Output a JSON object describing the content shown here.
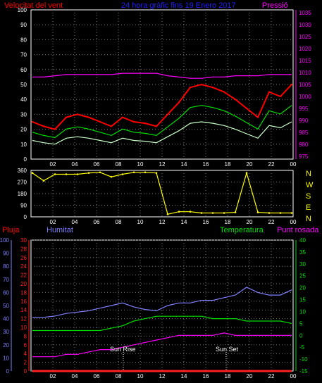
{
  "title": "24 hora gràfic fins 19 Enero 2017",
  "colors": {
    "background": "#000000",
    "frame": "#ffffff",
    "grid": "#7a7a7a",
    "wind_speed": "#ff0000",
    "wind_avg": "#00e000",
    "wind_min": "#c8ffc8",
    "pressure": "#ff00ff",
    "direction": "#ffff00",
    "humidity": "#8080ff",
    "rain": "#ff2020",
    "temperature": "#00e000",
    "dew_point": "#ff00ff",
    "left_axis_rain": "#8080ff",
    "title": "#2020ff"
  },
  "top_panel": {
    "left_label": "Velocitat del vent",
    "right_label": "Pressió",
    "left_ticks": [
      "0",
      "10",
      "20",
      "30",
      "40",
      "50",
      "60",
      "70",
      "80",
      "90",
      "100"
    ],
    "right_ticks": [
      "975",
      "980",
      "985",
      "990",
      "995",
      "1000",
      "1005",
      "1010",
      "1015",
      "1020",
      "1025",
      "1030",
      "1035"
    ]
  },
  "mid_panel": {
    "left_ticks": [
      "0",
      "90",
      "180",
      "270",
      "360"
    ],
    "compass": [
      "N",
      "W",
      "S",
      "E",
      "N"
    ]
  },
  "bottom_panel": {
    "label_rain": "Pluja",
    "label_humidity": "Humitat",
    "label_temperature": "Temperatura",
    "label_dewpoint": "Punt rosada",
    "rain_ticks": [
      "0",
      "10",
      "20",
      "30",
      "40",
      "50",
      "60",
      "70",
      "80",
      "90",
      "100"
    ],
    "humidity_ticks": [
      "0",
      "2",
      "4",
      "6",
      "8",
      "10",
      "12",
      "14",
      "16",
      "18",
      "20",
      "22",
      "24",
      "26",
      "28",
      "30"
    ],
    "temp_ticks": [
      "-15",
      "-10",
      "-5",
      "0",
      "5",
      "10",
      "15",
      "20",
      "25",
      "30",
      "35",
      "40"
    ],
    "sunrise": "Sun Rise",
    "sunset": "Sun Set"
  },
  "x_ticks": [
    "02",
    "04",
    "06",
    "08",
    "10",
    "12",
    "14",
    "16",
    "18",
    "20",
    "22",
    "00"
  ],
  "chart_data": [
    {
      "type": "line",
      "panel": "wind-pressure",
      "x": [
        "01",
        "02",
        "03",
        "04",
        "05",
        "06",
        "07",
        "08",
        "09",
        "10",
        "11",
        "12",
        "13",
        "14",
        "15",
        "16",
        "17",
        "18",
        "19",
        "20",
        "21",
        "22",
        "23",
        "00"
      ],
      "series": [
        {
          "name": "Velocitat del vent",
          "axis": "left",
          "ylim": [
            0,
            100
          ],
          "values": [
            25,
            22,
            20,
            28,
            30,
            28,
            25,
            22,
            28,
            25,
            24,
            22,
            30,
            38,
            48,
            50,
            48,
            45,
            40,
            34,
            28,
            45,
            42,
            50
          ]
        },
        {
          "name": "Pressió",
          "axis": "right",
          "ylim": [
            975,
            1035
          ],
          "values": [
            1008,
            1008,
            1008.5,
            1009,
            1009,
            1009,
            1009,
            1009,
            1009.5,
            1009.5,
            1009.5,
            1009.5,
            1008.5,
            1008,
            1007.5,
            1007.5,
            1008,
            1008,
            1008.5,
            1008.5,
            1008.5,
            1009,
            1009,
            1009
          ]
        }
      ]
    },
    {
      "type": "scatter",
      "panel": "wind-direction",
      "x": [
        "01",
        "02",
        "03",
        "04",
        "05",
        "06",
        "07",
        "08",
        "09",
        "10",
        "11",
        "12",
        "13",
        "14",
        "15",
        "16",
        "17",
        "18",
        "19",
        "20",
        "21",
        "22",
        "23",
        "00"
      ],
      "series": [
        {
          "name": "Direcció",
          "ylim": [
            0,
            360
          ],
          "values": [
            340,
            280,
            330,
            330,
            330,
            340,
            345,
            310,
            330,
            345,
            345,
            340,
            20,
            40,
            40,
            30,
            30,
            30,
            35,
            340,
            35,
            30,
            30,
            30
          ]
        }
      ]
    },
    {
      "type": "line",
      "panel": "temperature-humidity",
      "x": [
        "01",
        "02",
        "03",
        "04",
        "05",
        "06",
        "07",
        "08",
        "09",
        "10",
        "11",
        "12",
        "13",
        "14",
        "15",
        "16",
        "17",
        "18",
        "19",
        "20",
        "21",
        "22",
        "23",
        "00"
      ],
      "series": [
        {
          "name": "Humitat",
          "axis": "left",
          "ylim": [
            0,
            100
          ],
          "values": [
            41,
            41,
            42,
            44,
            45,
            46,
            48,
            50,
            52,
            49,
            47,
            46,
            50,
            52,
            52,
            54,
            54,
            56,
            58,
            64,
            60,
            58,
            58,
            62
          ]
        },
        {
          "name": "Temperatura",
          "axis": "right",
          "ylim": [
            -15,
            40
          ],
          "values": [
            2,
            2,
            2,
            2,
            2,
            2,
            2,
            3,
            4,
            6,
            7,
            8,
            8,
            8,
            8,
            8,
            7,
            7,
            7,
            6,
            6,
            6,
            6,
            5
          ]
        },
        {
          "name": "Punt rosada",
          "axis": "right",
          "ylim": [
            -15,
            40
          ],
          "values": [
            -9,
            -9,
            -9,
            -8,
            -8,
            -7,
            -6,
            -6,
            -5,
            -4,
            -3,
            -2,
            -1,
            0,
            0,
            0,
            0,
            1,
            0,
            0,
            0,
            0,
            0,
            0
          ]
        },
        {
          "name": "Pluja",
          "axis": "left",
          "ylim": [
            0,
            100
          ],
          "values": [
            0,
            0,
            0,
            0,
            0,
            0,
            0,
            0,
            0,
            0,
            0,
            0,
            0,
            0,
            0,
            0,
            0,
            0,
            0,
            0,
            0,
            0,
            0,
            0
          ]
        }
      ]
    }
  ]
}
